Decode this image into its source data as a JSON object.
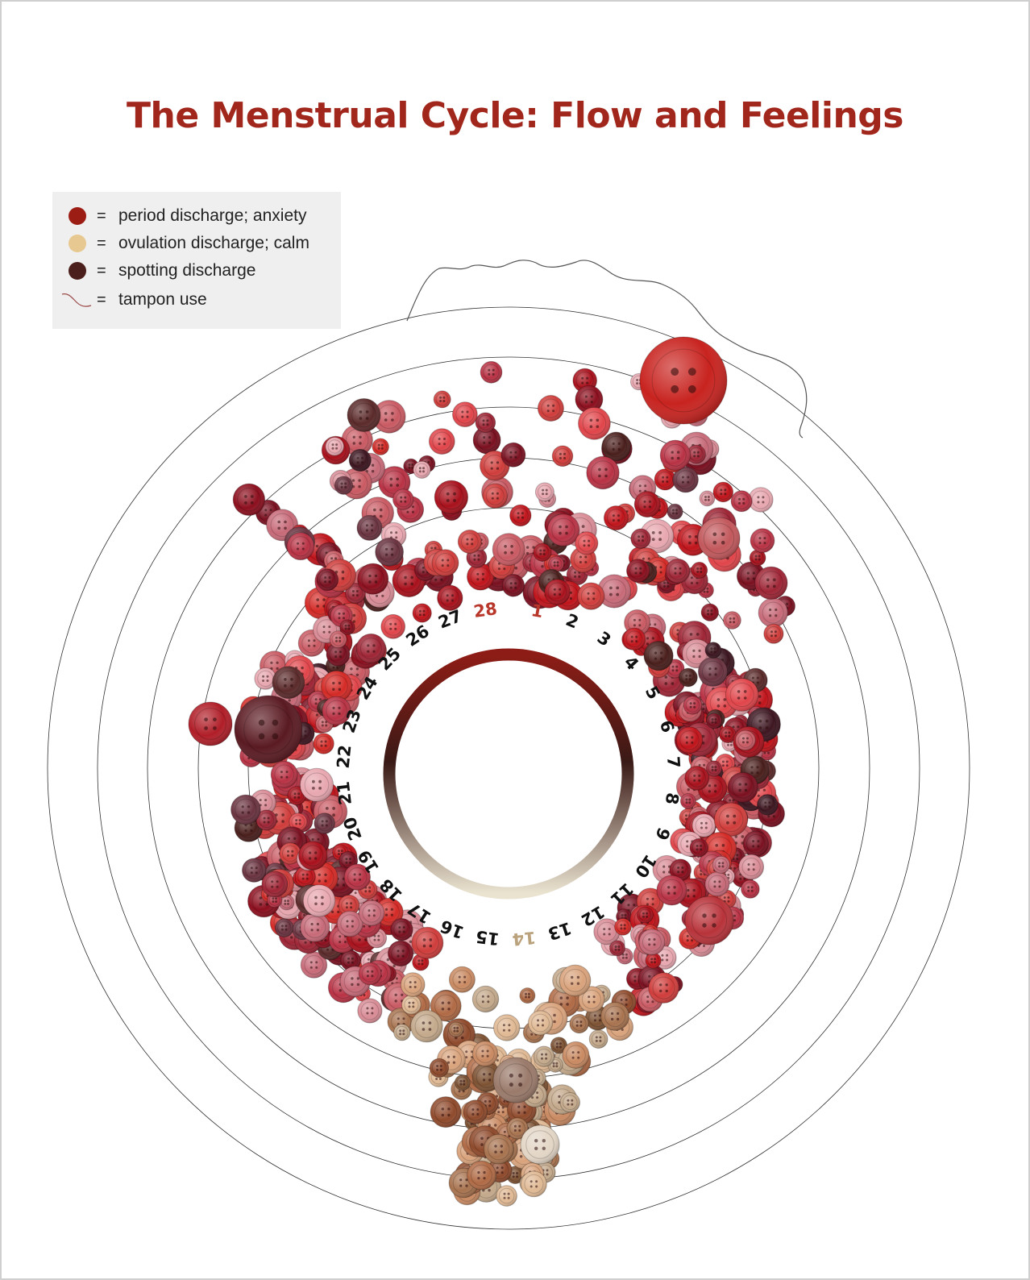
{
  "title": "The Menstrual Cycle: Flow and Feelings",
  "legend": [
    {
      "symbol": "dot",
      "color": "#9b1d14",
      "equals": "=",
      "label": "period discharge; anxiety"
    },
    {
      "symbol": "dot",
      "color": "#e7c891",
      "equals": "=",
      "label": "ovulation discharge; calm"
    },
    {
      "symbol": "dot",
      "color": "#4a1f1c",
      "equals": "=",
      "label": "spotting discharge"
    },
    {
      "symbol": "line",
      "color": "#9b4a48",
      "equals": "=",
      "label": "tampon use"
    }
  ],
  "cycle": {
    "days": [
      {
        "day": "1",
        "color": "#b8362a"
      },
      {
        "day": "2",
        "color": "#111111"
      },
      {
        "day": "3",
        "color": "#111111"
      },
      {
        "day": "4",
        "color": "#111111"
      },
      {
        "day": "5",
        "color": "#111111"
      },
      {
        "day": "6",
        "color": "#111111"
      },
      {
        "day": "7",
        "color": "#111111"
      },
      {
        "day": "8",
        "color": "#111111"
      },
      {
        "day": "9",
        "color": "#111111"
      },
      {
        "day": "10",
        "color": "#111111"
      },
      {
        "day": "11",
        "color": "#111111"
      },
      {
        "day": "12",
        "color": "#111111"
      },
      {
        "day": "13",
        "color": "#111111"
      },
      {
        "day": "14",
        "color": "#b9a27c"
      },
      {
        "day": "15",
        "color": "#111111"
      },
      {
        "day": "16",
        "color": "#111111"
      },
      {
        "day": "17",
        "color": "#111111"
      },
      {
        "day": "18",
        "color": "#111111"
      },
      {
        "day": "19",
        "color": "#111111"
      },
      {
        "day": "20",
        "color": "#111111"
      },
      {
        "day": "21",
        "color": "#111111"
      },
      {
        "day": "22",
        "color": "#111111"
      },
      {
        "day": "23",
        "color": "#111111"
      },
      {
        "day": "24",
        "color": "#111111"
      },
      {
        "day": "25",
        "color": "#111111"
      },
      {
        "day": "26",
        "color": "#111111"
      },
      {
        "day": "27",
        "color": "#111111"
      },
      {
        "day": "28",
        "color": "#b8362a"
      }
    ],
    "ring_gradient": [
      "#8e1c16",
      "#3a1a16",
      "#eae3d0"
    ],
    "button_palette": {
      "period": [
        "#c0141b",
        "#a8111c",
        "#d42a26",
        "#8c0f1e",
        "#b83244",
        "#9e2535",
        "#cf3d3b",
        "#e0454a",
        "#7a1020",
        "#c95a63"
      ],
      "pink": [
        "#d98c96",
        "#e8a7b0",
        "#c76a78"
      ],
      "ovulation": [
        "#b06a45",
        "#c98a62",
        "#8f4a2c",
        "#d9a37c",
        "#a8734f",
        "#e0b994",
        "#7d5233",
        "#c4a98b"
      ],
      "spotting": [
        "#4a1f1c",
        "#5b2a2a",
        "#3d1620",
        "#6a3340"
      ]
    }
  }
}
